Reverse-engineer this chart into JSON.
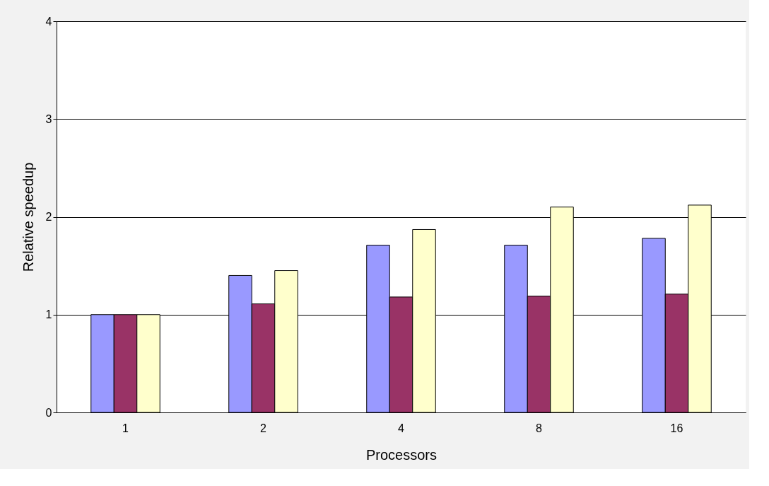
{
  "chart_data": {
    "type": "bar",
    "xlabel": "Processors",
    "ylabel": "Relative speedup",
    "categories": [
      "1",
      "2",
      "4",
      "8",
      "16"
    ],
    "series": [
      {
        "color": "#9999ff",
        "values": [
          1.0,
          1.4,
          1.71,
          1.71,
          1.78
        ]
      },
      {
        "color": "#993366",
        "values": [
          1.0,
          1.11,
          1.18,
          1.19,
          1.21
        ]
      },
      {
        "color": "#ffffcc",
        "values": [
          1.0,
          1.45,
          1.87,
          2.1,
          2.12
        ]
      }
    ],
    "ylim": [
      0,
      4
    ],
    "yticks": [
      0,
      1,
      2,
      3,
      4
    ],
    "grid": "y",
    "legend": false
  }
}
